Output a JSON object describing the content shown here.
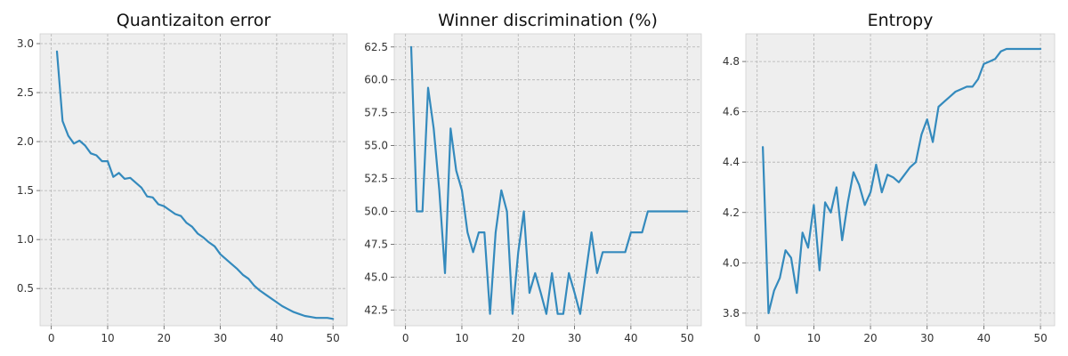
{
  "colors": {
    "series": "#348abd",
    "background": "#eeeeee",
    "grid": "#b2b2b2"
  },
  "chart_data": [
    {
      "type": "line",
      "title": "Quantizaiton error",
      "grid": true,
      "xlim": [
        -2,
        52.5
      ],
      "ylim": [
        0.12,
        3.1
      ],
      "xticks": [
        0,
        10,
        20,
        30,
        40,
        50
      ],
      "yticks": [
        0.5,
        1.0,
        1.5,
        2.0,
        2.5,
        3.0
      ],
      "ytick_labels": [
        "0.5",
        "1.0",
        "1.5",
        "2.0",
        "2.5",
        "3.0"
      ],
      "series": [
        {
          "x": [
            1,
            2,
            3,
            4,
            5,
            6,
            7,
            8,
            9,
            10,
            11,
            12,
            13,
            14,
            15,
            16,
            17,
            18,
            19,
            20,
            21,
            22,
            23,
            24,
            25,
            26,
            27,
            28,
            29,
            30,
            31,
            32,
            33,
            34,
            35,
            36,
            37,
            38,
            39,
            40,
            41,
            42,
            43,
            44,
            45,
            46,
            47,
            48,
            49,
            50
          ],
          "values": [
            2.92,
            2.21,
            2.06,
            1.98,
            2.01,
            1.96,
            1.88,
            1.86,
            1.8,
            1.8,
            1.64,
            1.68,
            1.62,
            1.63,
            1.58,
            1.53,
            1.44,
            1.43,
            1.36,
            1.34,
            1.3,
            1.26,
            1.24,
            1.17,
            1.13,
            1.06,
            1.02,
            0.97,
            0.93,
            0.85,
            0.8,
            0.75,
            0.7,
            0.64,
            0.6,
            0.53,
            0.48,
            0.44,
            0.4,
            0.36,
            0.32,
            0.29,
            0.26,
            0.24,
            0.22,
            0.21,
            0.2,
            0.2,
            0.2,
            0.19
          ]
        }
      ]
    },
    {
      "type": "line",
      "title": "Winner discrimination (%)",
      "grid": true,
      "xlim": [
        -2,
        52.5
      ],
      "ylim": [
        41.3,
        63.5
      ],
      "xticks": [
        0,
        10,
        20,
        30,
        40,
        50
      ],
      "yticks": [
        42.5,
        45.0,
        47.5,
        50.0,
        52.5,
        55.0,
        57.5,
        60.0,
        62.5
      ],
      "ytick_labels": [
        "42.5",
        "45.0",
        "47.5",
        "50.0",
        "52.5",
        "55.0",
        "57.5",
        "60.0",
        "62.5"
      ],
      "series": [
        {
          "x": [
            1,
            2,
            3,
            4,
            5,
            6,
            7,
            8,
            9,
            10,
            11,
            12,
            13,
            14,
            15,
            16,
            17,
            18,
            19,
            20,
            21,
            22,
            23,
            24,
            25,
            26,
            27,
            28,
            29,
            30,
            31,
            32,
            33,
            34,
            35,
            36,
            37,
            38,
            39,
            40,
            41,
            42,
            43,
            44,
            45,
            46,
            47,
            48,
            49,
            50
          ],
          "values": [
            62.5,
            50.0,
            50.0,
            59.4,
            56.3,
            51.6,
            45.3,
            56.3,
            53.1,
            51.6,
            48.4,
            46.9,
            48.4,
            48.4,
            42.2,
            48.4,
            51.6,
            50.0,
            42.2,
            46.9,
            50.0,
            43.8,
            45.3,
            43.8,
            42.2,
            45.3,
            42.2,
            42.2,
            45.3,
            43.8,
            42.2,
            45.3,
            48.4,
            45.3,
            46.9,
            46.9,
            46.9,
            46.9,
            46.9,
            48.4,
            48.4,
            48.4,
            50.0,
            50.0,
            50.0,
            50.0,
            50.0,
            50.0,
            50.0,
            50.0
          ]
        }
      ]
    },
    {
      "type": "line",
      "title": "Entropy",
      "grid": true,
      "xlim": [
        -2,
        52.5
      ],
      "ylim": [
        3.75,
        4.91
      ],
      "xticks": [
        0,
        10,
        20,
        30,
        40,
        50
      ],
      "yticks": [
        3.8,
        4.0,
        4.2,
        4.4,
        4.6,
        4.8
      ],
      "ytick_labels": [
        "3.8",
        "4.0",
        "4.2",
        "4.4",
        "4.6",
        "4.8"
      ],
      "series": [
        {
          "x": [
            1,
            2,
            3,
            4,
            5,
            6,
            7,
            8,
            9,
            10,
            11,
            12,
            13,
            14,
            15,
            16,
            17,
            18,
            19,
            20,
            21,
            22,
            23,
            24,
            25,
            26,
            27,
            28,
            29,
            30,
            31,
            32,
            33,
            34,
            35,
            36,
            37,
            38,
            39,
            40,
            41,
            42,
            43,
            44,
            45,
            46,
            47,
            48,
            49,
            50
          ],
          "values": [
            4.46,
            3.8,
            3.89,
            3.94,
            4.05,
            4.02,
            3.88,
            4.12,
            4.06,
            4.23,
            3.97,
            4.24,
            4.2,
            4.3,
            4.09,
            4.24,
            4.36,
            4.31,
            4.23,
            4.28,
            4.39,
            4.28,
            4.35,
            4.34,
            4.32,
            4.35,
            4.38,
            4.4,
            4.51,
            4.57,
            4.48,
            4.62,
            4.64,
            4.66,
            4.68,
            4.69,
            4.7,
            4.7,
            4.73,
            4.79,
            4.8,
            4.81,
            4.84,
            4.85,
            4.85,
            4.85,
            4.85,
            4.85,
            4.85,
            4.85
          ]
        }
      ]
    }
  ]
}
